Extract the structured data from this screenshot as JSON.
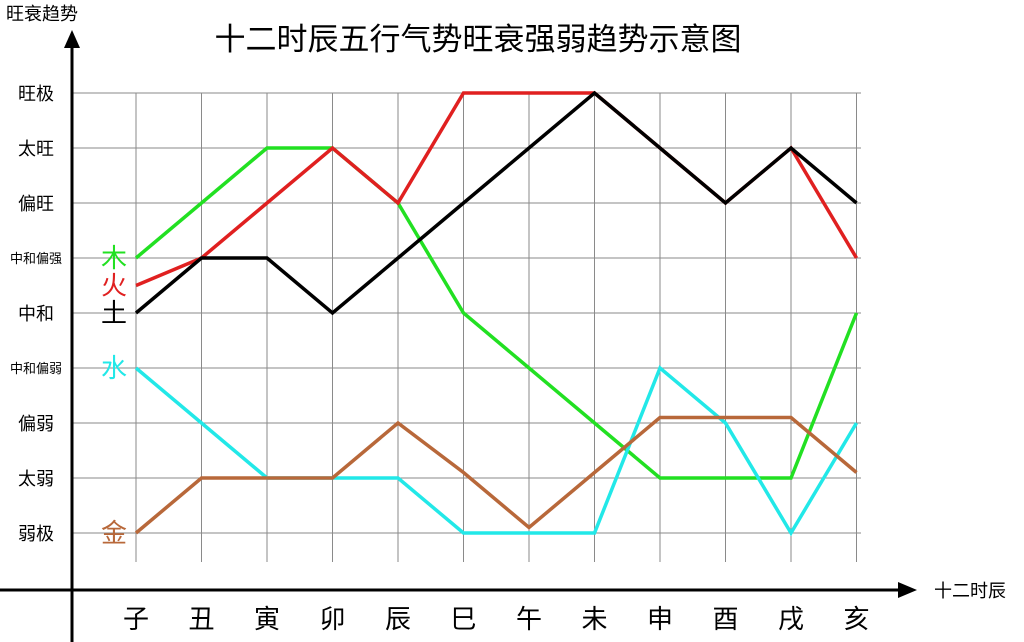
{
  "chart_data": {
    "type": "line",
    "title": "十二时辰五行气势旺衰强弱趋势示意图",
    "ylabel": "旺衰趋势",
    "xlabel": "十二时辰",
    "categories": [
      "子",
      "丑",
      "寅",
      "卯",
      "辰",
      "巳",
      "午",
      "未",
      "申",
      "酉",
      "戌",
      "亥"
    ],
    "y_levels": [
      "弱极",
      "太弱",
      "偏弱",
      "中和偏弱",
      "中和",
      "中和偏强",
      "偏旺",
      "太旺",
      "旺极"
    ],
    "ylim": [
      0,
      8
    ],
    "grid": true,
    "legend_placement": "left, next to each line's start",
    "series": [
      {
        "name": "木",
        "color": "#22e022",
        "values": [
          5,
          6,
          7,
          7,
          6,
          4,
          3,
          2,
          1,
          1,
          1,
          4
        ]
      },
      {
        "name": "火",
        "color": "#e02020",
        "values": [
          4.5,
          5,
          6,
          7,
          6,
          8,
          8,
          8,
          7,
          6,
          7,
          5
        ]
      },
      {
        "name": "土",
        "color": "#000000",
        "values": [
          4,
          5,
          5,
          4,
          5,
          6,
          7,
          8,
          7,
          6,
          7,
          6
        ]
      },
      {
        "name": "水",
        "color": "#22e8e8",
        "values": [
          3,
          2,
          1,
          1,
          1,
          0,
          0,
          0,
          3,
          2,
          0,
          2
        ]
      },
      {
        "name": "金",
        "color": "#b8683a",
        "values": [
          0,
          1,
          1,
          1,
          2,
          1.1,
          0.1,
          1.1,
          2.1,
          2.1,
          2.1,
          1.1
        ]
      }
    ]
  }
}
